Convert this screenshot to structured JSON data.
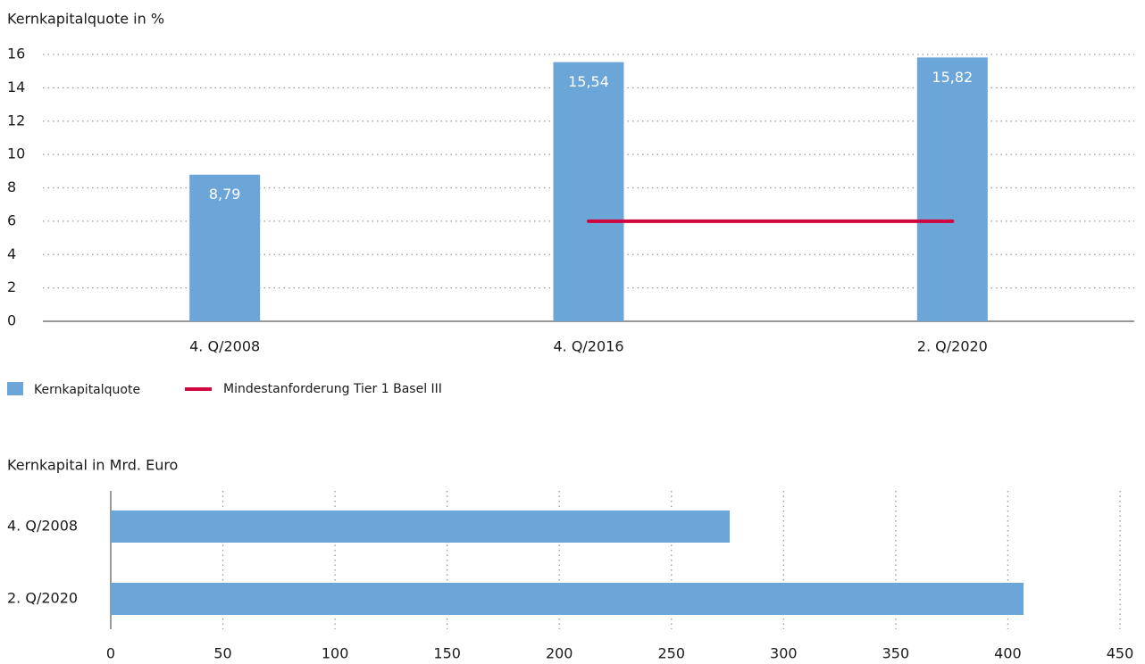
{
  "chart_data": [
    {
      "type": "bar",
      "title": "Kernkapitalquote in %",
      "categories": [
        "4. Q/2008",
        "4. Q/2016",
        "2. Q/2020"
      ],
      "series": [
        {
          "name": "Kernkapitalquote",
          "color": "#6ca6d9",
          "values": [
            8.79,
            15.54,
            15.82
          ],
          "value_labels": [
            "8,79",
            "15,54",
            "15,82"
          ]
        },
        {
          "name": "Mindestanforderung Tier 1 Basel III",
          "type": "line",
          "color": "#d0073f",
          "values": [
            null,
            6,
            6
          ]
        }
      ],
      "ylim": [
        0,
        16
      ],
      "yticks": [
        0,
        2,
        4,
        6,
        8,
        10,
        12,
        14,
        16
      ],
      "grid": true,
      "legend": "bottom-left"
    },
    {
      "type": "barh",
      "title": "Kernkapital in Mrd. Euro",
      "categories": [
        "4. Q/2008",
        "2. Q/2020"
      ],
      "values": [
        276,
        407
      ],
      "color": "#6ca6d9",
      "xlim": [
        0,
        450
      ],
      "xticks": [
        0,
        50,
        100,
        150,
        200,
        250,
        300,
        350,
        400,
        450
      ],
      "grid": true
    }
  ]
}
